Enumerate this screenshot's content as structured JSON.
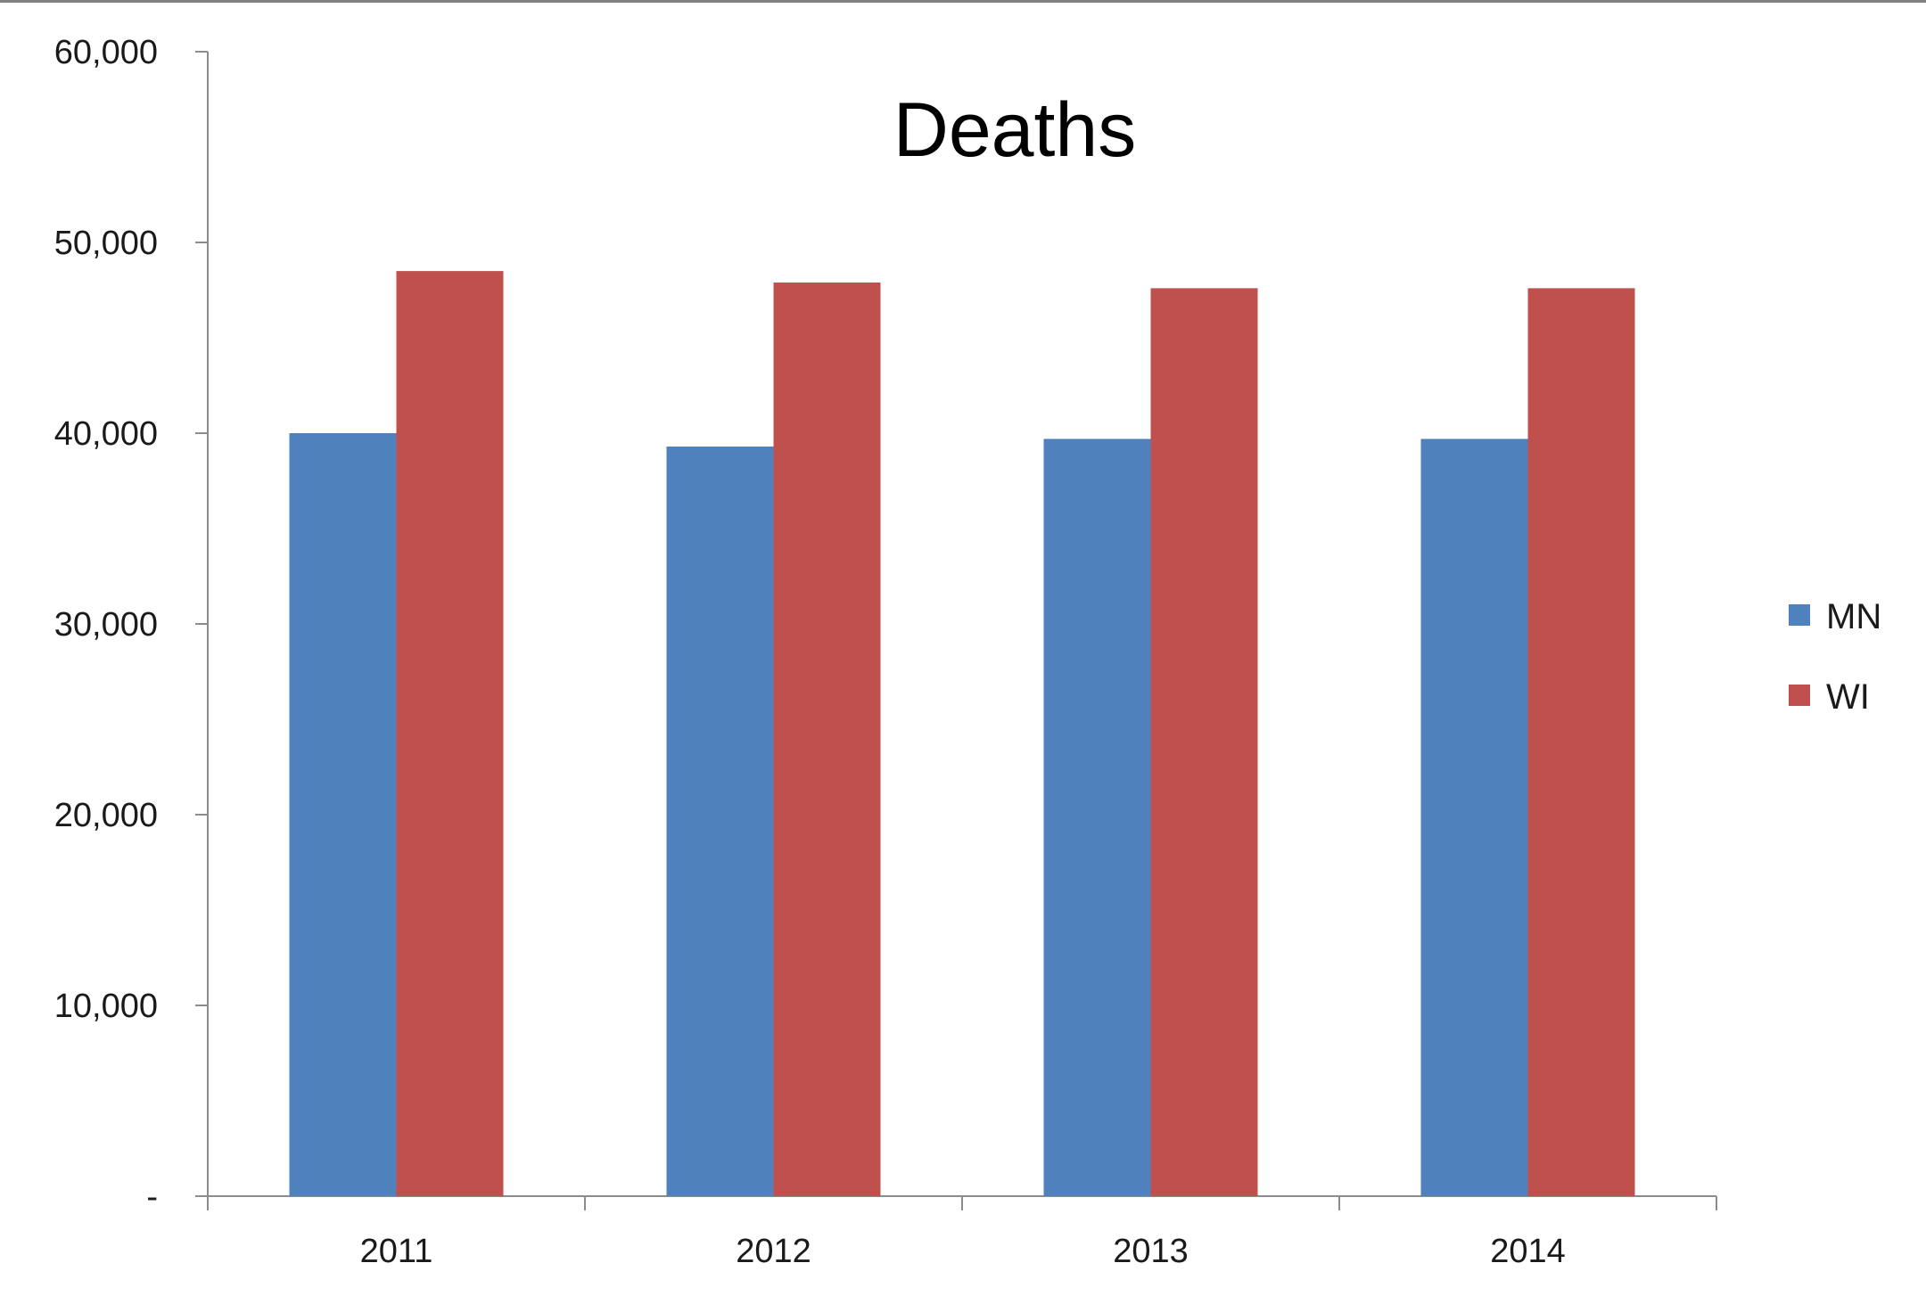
{
  "chart_data": {
    "type": "bar",
    "title": "Deaths",
    "xlabel": "",
    "ylabel": "",
    "categories": [
      "2011",
      "2012",
      "2013",
      "2014"
    ],
    "series": [
      {
        "name": "MN",
        "values": [
          40000,
          39300,
          39700,
          39700
        ],
        "color": "#4f81bd"
      },
      {
        "name": "WI",
        "values": [
          48500,
          47900,
          47600,
          47600
        ],
        "color": "#c0504d"
      }
    ],
    "ylim": [
      0,
      60000
    ],
    "y_ticks": [
      0,
      10000,
      20000,
      30000,
      40000,
      50000,
      60000
    ],
    "y_tick_labels": [
      "-",
      "10,000",
      "20,000",
      "30,000",
      "40,000",
      "50,000",
      "60,000"
    ],
    "grid": false,
    "legend_position": "right"
  }
}
